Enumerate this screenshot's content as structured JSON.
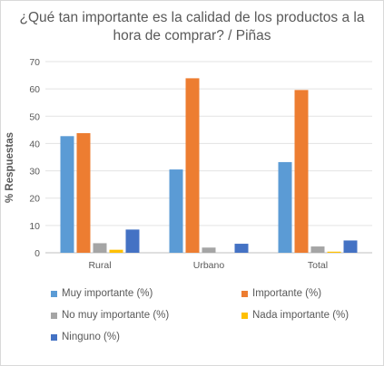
{
  "chart_data": {
    "type": "bar",
    "title_lines": [
      "¿Qué tan importante es la calidad de los productos a la",
      "hora de comprar? / Piñas"
    ],
    "xlabel": "",
    "ylabel": "% Respuestas",
    "ylim": [
      0,
      70
    ],
    "yticks": [
      0,
      10,
      20,
      30,
      40,
      50,
      60,
      70
    ],
    "grid": true,
    "legend_position": "bottom",
    "categories": [
      "Rural",
      "Urbano",
      "Total"
    ],
    "series": [
      {
        "name": "Muy importante (%)",
        "color": "#5b9bd5",
        "values": [
          42.7,
          30.5,
          33.2
        ]
      },
      {
        "name": "Importante (%)",
        "color": "#ed7d31",
        "values": [
          43.8,
          63.9,
          59.6
        ]
      },
      {
        "name": "No muy importante (%)",
        "color": "#a5a5a5",
        "values": [
          3.5,
          1.9,
          2.3
        ]
      },
      {
        "name": "Nada importante (%)",
        "color": "#ffc000",
        "values": [
          1.1,
          0.0,
          0.4
        ]
      },
      {
        "name": "Ninguno (%)",
        "color": "#4472c4",
        "values": [
          8.5,
          3.3,
          4.5
        ]
      }
    ]
  }
}
